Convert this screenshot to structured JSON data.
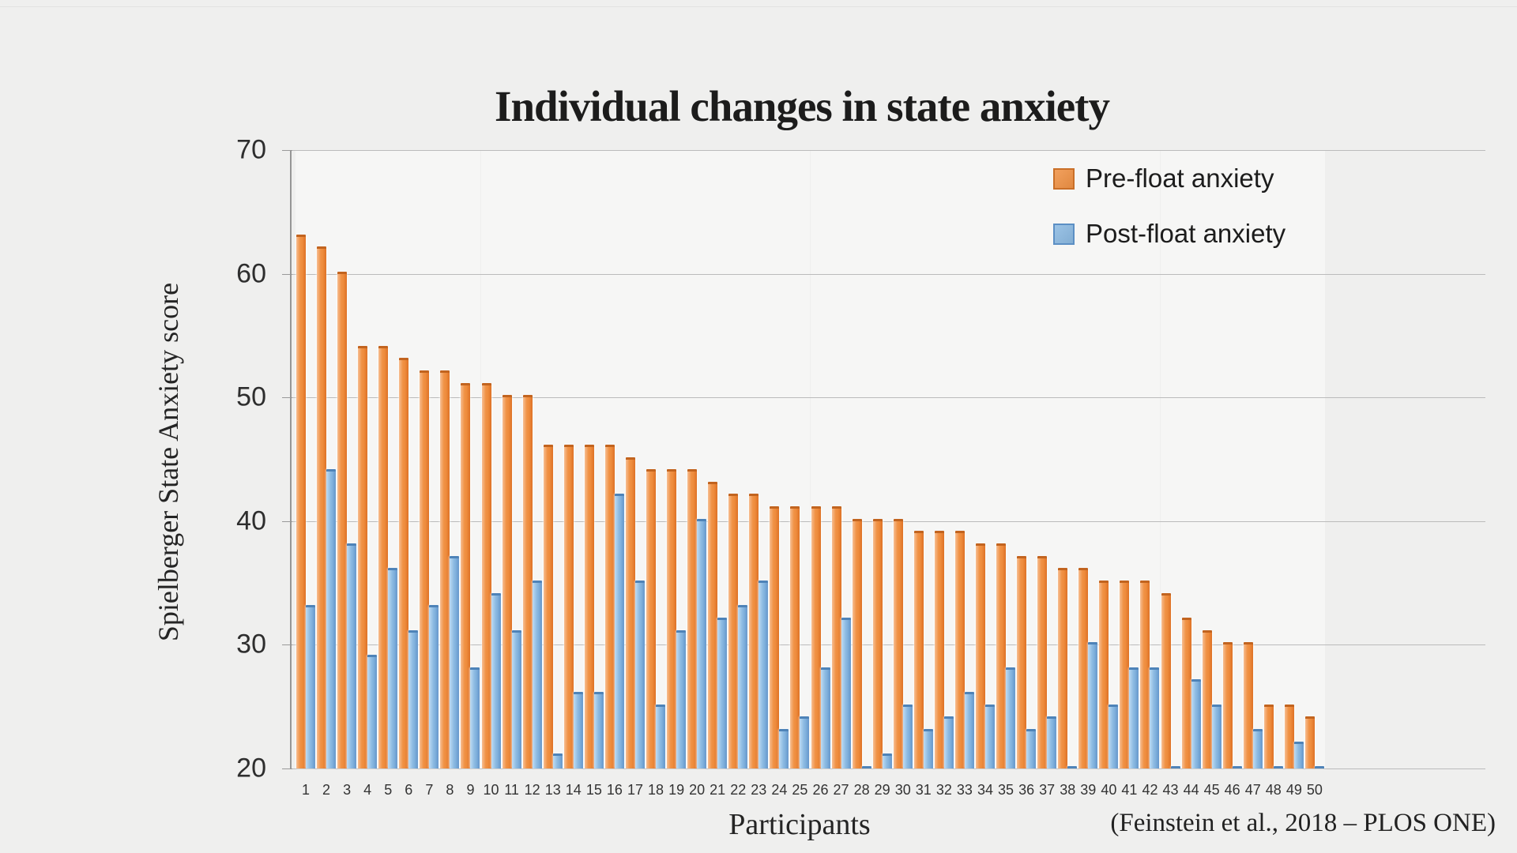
{
  "title": {
    "text": "Individual changes in state anxiety"
  },
  "axes": {
    "y_title": "Spielberger State Anxiety score",
    "x_title": "Participants"
  },
  "citation": {
    "text": "(Feinstein et al., 2018 – PLOS ONE)"
  },
  "legend": {
    "items": [
      {
        "label": "Pre-float anxiety",
        "fill": "#f09245",
        "border": "#c96f28"
      },
      {
        "label": "Post-float anxiety",
        "fill": "#8cbae2",
        "border": "#5c8fc4"
      }
    ]
  },
  "chart_data": {
    "type": "bar",
    "title": "Individual changes in state anxiety",
    "xlabel": "Participants",
    "ylabel": "Spielberger State Anxiety score",
    "ylim": [
      20,
      70
    ],
    "y_ticks": [
      70,
      60,
      50,
      40,
      30,
      20
    ],
    "grid": true,
    "legend_position": "top-right",
    "categories": [
      1,
      2,
      3,
      4,
      5,
      6,
      7,
      8,
      9,
      10,
      11,
      12,
      13,
      14,
      15,
      16,
      17,
      18,
      19,
      20,
      21,
      22,
      23,
      24,
      25,
      26,
      27,
      28,
      29,
      30,
      31,
      32,
      33,
      34,
      35,
      36,
      37,
      38,
      39,
      40,
      41,
      42,
      43,
      44,
      45,
      46,
      47,
      48,
      49,
      50
    ],
    "series": [
      {
        "name": "Pre-float anxiety",
        "color": "#f09245",
        "values": [
          63,
          62,
          60,
          54,
          54,
          53,
          52,
          52,
          51,
          51,
          50,
          50,
          46,
          46,
          46,
          46,
          45,
          44,
          44,
          44,
          43,
          42,
          42,
          41,
          41,
          41,
          41,
          40,
          40,
          40,
          39,
          39,
          39,
          38,
          38,
          37,
          37,
          36,
          36,
          35,
          35,
          35,
          34,
          32,
          31,
          30,
          30,
          25,
          25,
          24
        ]
      },
      {
        "name": "Post-float anxiety",
        "color": "#8cbae2",
        "values": [
          33,
          44,
          38,
          29,
          36,
          31,
          33,
          37,
          28,
          34,
          31,
          35,
          21,
          26,
          26,
          42,
          35,
          25,
          31,
          40,
          32,
          33,
          35,
          23,
          24,
          28,
          32,
          20,
          21,
          25,
          23,
          24,
          26,
          25,
          28,
          23,
          24,
          20,
          30,
          25,
          28,
          28,
          20,
          27,
          25,
          20,
          23,
          20,
          22,
          20
        ]
      }
    ]
  }
}
